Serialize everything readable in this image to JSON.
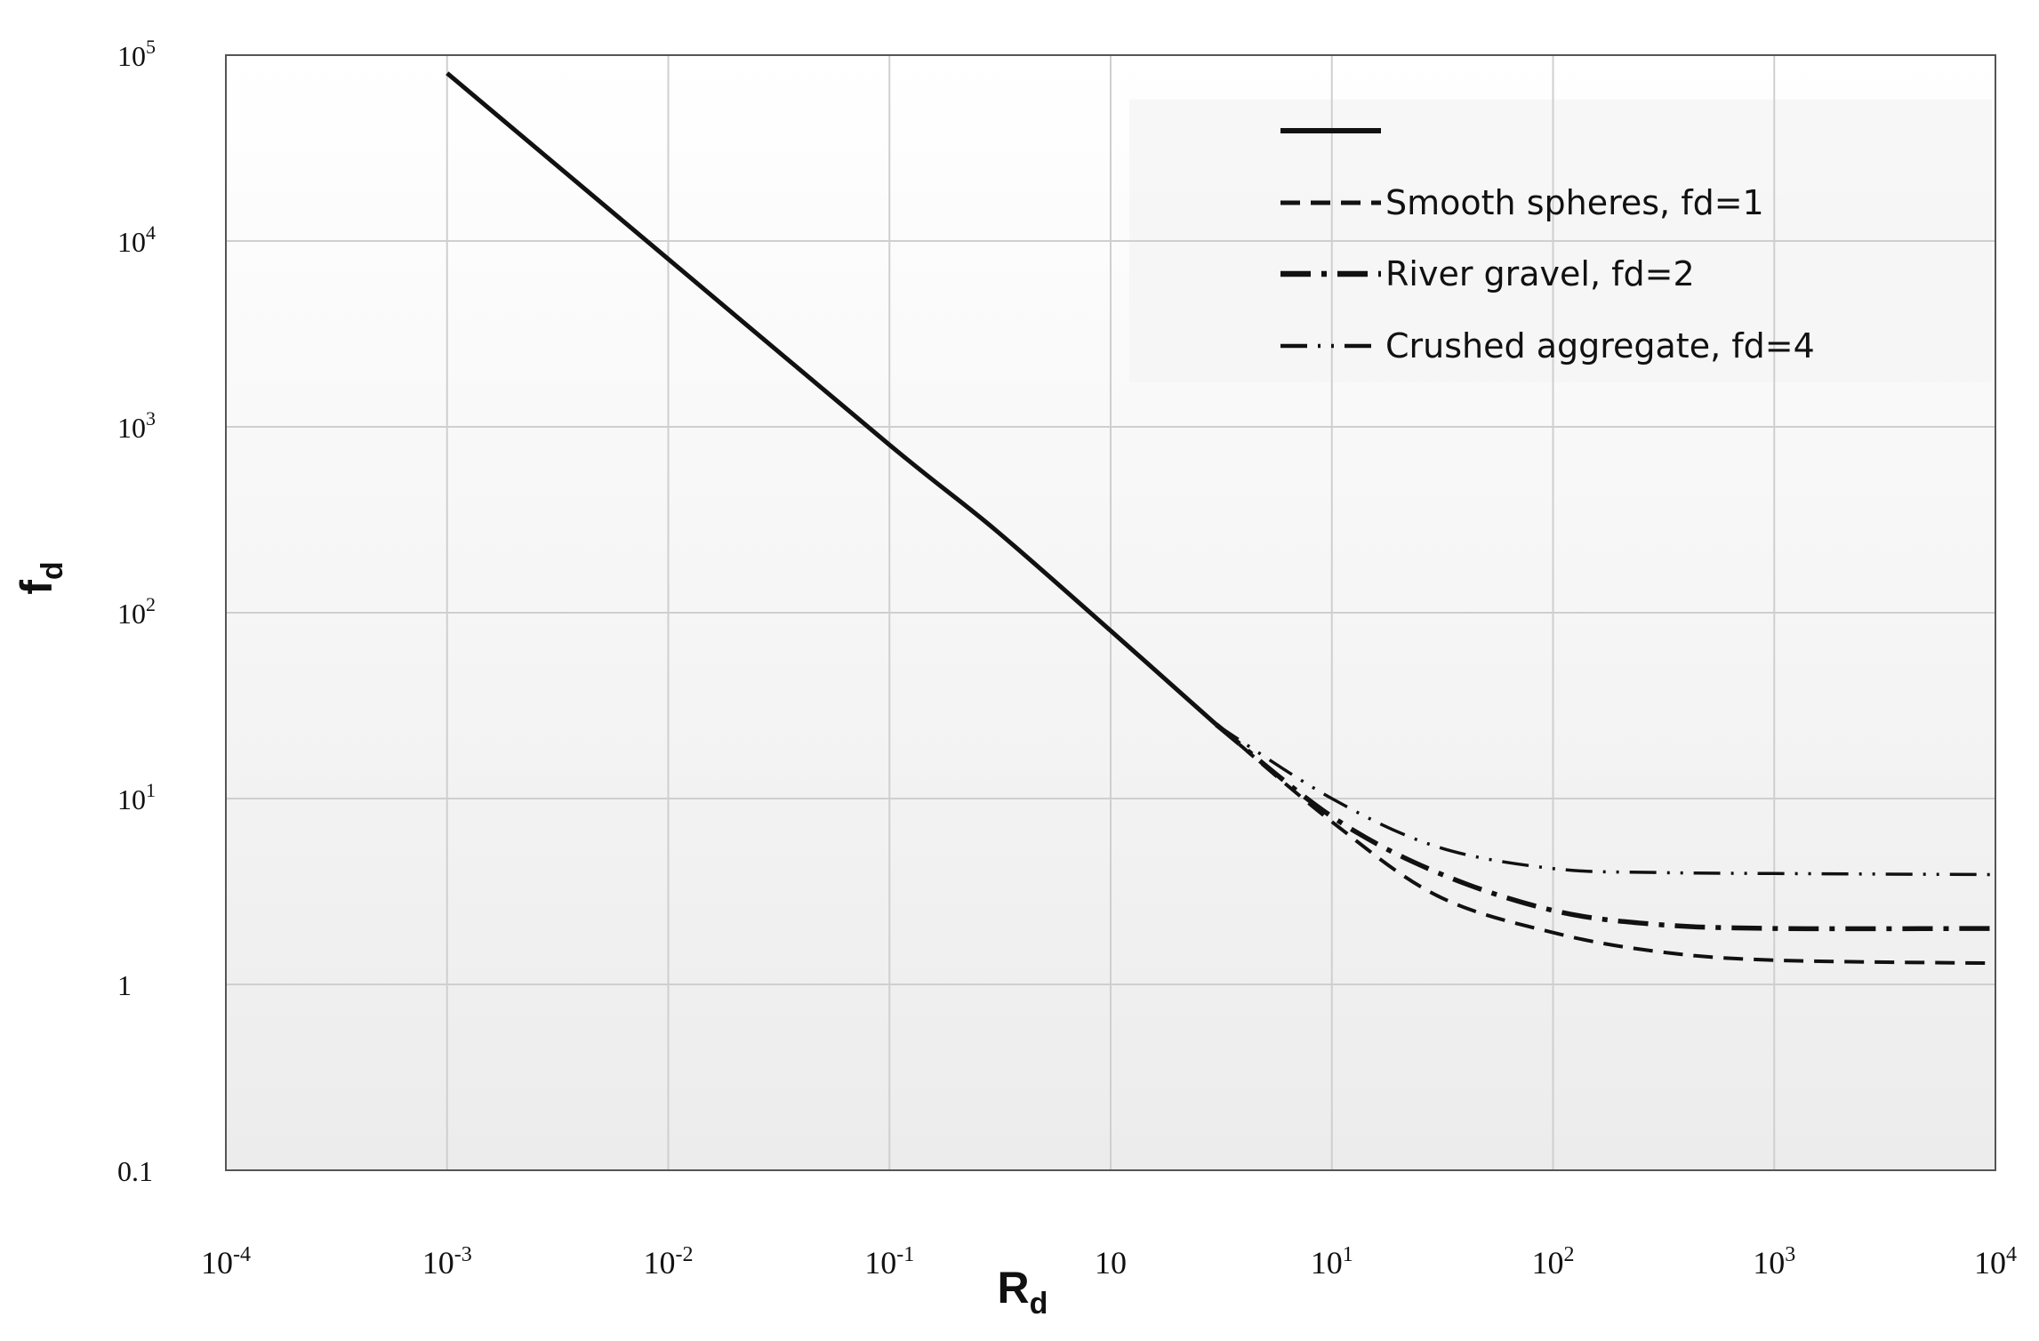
{
  "chart_data": {
    "type": "line",
    "title": "",
    "xlabel": {
      "base": "R",
      "sub": "d"
    },
    "ylabel": {
      "base": "f",
      "sub": "d"
    },
    "xscale": "log",
    "yscale": "log",
    "xlim": [
      0.0001,
      10000
    ],
    "ylim": [
      0.1,
      100000
    ],
    "grid": true,
    "legend_position": "top-right",
    "x_tick_labels": [
      {
        "base": "10",
        "exp": "-4"
      },
      {
        "base": "10",
        "exp": "-3"
      },
      {
        "base": "10",
        "exp": "-2"
      },
      {
        "base": "10",
        "exp": "-1"
      },
      {
        "base": "10",
        "exp": ""
      },
      {
        "base": "10",
        "exp": "1"
      },
      {
        "base": "10",
        "exp": "2"
      },
      {
        "base": "10",
        "exp": "3"
      },
      {
        "base": "10",
        "exp": "4"
      }
    ],
    "y_tick_labels": [
      {
        "base": "0.1",
        "exp": ""
      },
      {
        "base": "1",
        "exp": ""
      },
      {
        "base": "10",
        "exp": "1"
      },
      {
        "base": "10",
        "exp": "2"
      },
      {
        "base": "10",
        "exp": "3"
      },
      {
        "base": "10",
        "exp": "4"
      },
      {
        "base": "10",
        "exp": "5"
      }
    ],
    "series": [
      {
        "name": "",
        "style": "solid",
        "x": [
          0.001,
          0.01,
          0.1,
          0.3,
          1,
          3
        ],
        "y": [
          80000,
          8000,
          800,
          280,
          80,
          25
        ]
      },
      {
        "name": "Smooth spheres, fd=1",
        "style": "dashed",
        "x": [
          3,
          10,
          30,
          100,
          300,
          1000,
          10000
        ],
        "y": [
          25,
          7.5,
          3.0,
          1.9,
          1.5,
          1.35,
          1.3
        ]
      },
      {
        "name": "River gravel, fd=2",
        "style": "dash-dot-bold",
        "x": [
          3,
          10,
          30,
          100,
          300,
          1000,
          10000
        ],
        "y": [
          25,
          8,
          4,
          2.5,
          2.1,
          2.0,
          2.0
        ]
      },
      {
        "name": "Crushed aggregate, fd=4",
        "style": "dash-dot-dot",
        "x": [
          3,
          10,
          30,
          100,
          300,
          1000,
          10000
        ],
        "y": [
          25,
          10,
          5.5,
          4.2,
          4.0,
          3.95,
          3.9
        ]
      }
    ]
  }
}
